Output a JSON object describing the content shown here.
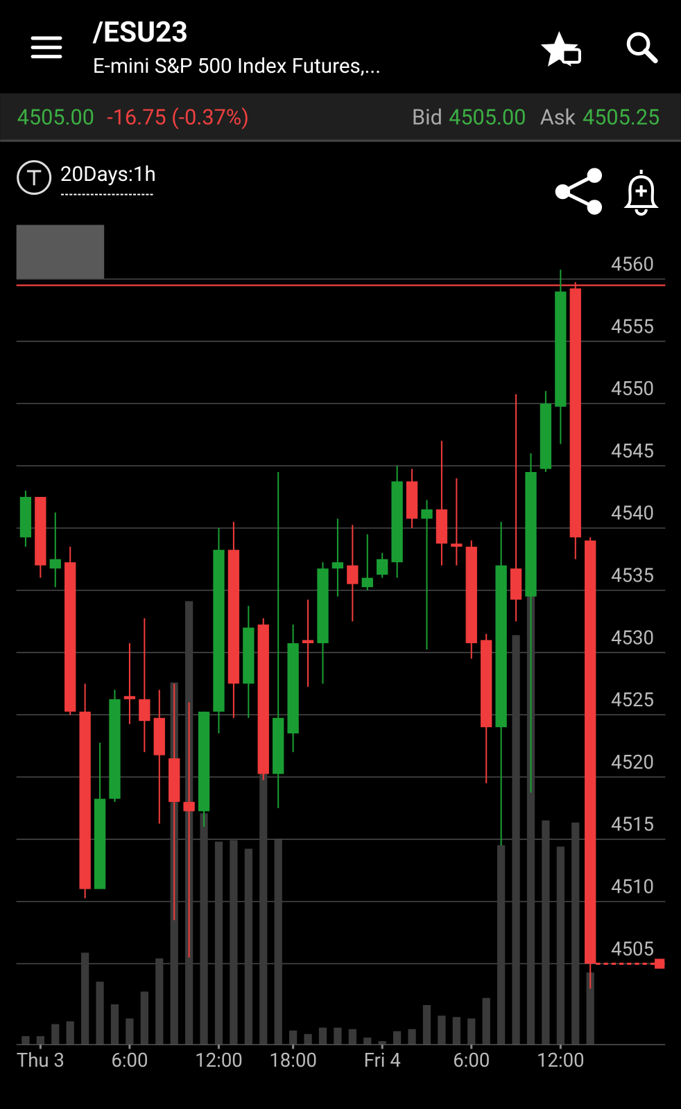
{
  "header": {
    "symbol": "/ESU23",
    "description": "E-mini S&P 500 Index Futures,..."
  },
  "quote": {
    "last": "4505.00",
    "change": "-16.75 (-0.37%)",
    "bid_label": "Bid",
    "bid": "4505.00",
    "ask_label": "Ask",
    "ask": "4505.25"
  },
  "chart_controls": {
    "timeframe": "20Days:1h"
  },
  "chart_data": {
    "type": "candlestick",
    "categories": [
      null,
      "Thu 3",
      null,
      null,
      null,
      null,
      null,
      "6:00",
      null,
      null,
      null,
      null,
      null,
      "12:00",
      null,
      null,
      null,
      null,
      "18:00",
      null,
      null,
      null,
      null,
      null,
      "Fri 4",
      null,
      null,
      null,
      null,
      null,
      "6:00",
      null,
      null,
      null,
      null,
      null,
      "12:00",
      null,
      null
    ],
    "open": [
      4539.25,
      4542.5,
      4536.75,
      4537.25,
      4525.25,
      4511,
      4518.25,
      4526.5,
      4526.25,
      4524.75,
      4521.5,
      4518,
      4517.25,
      4525.25,
      4538.25,
      4527.5,
      4532.25,
      4520.25,
      4523.5,
      4531,
      4530.75,
      4536.75,
      4537,
      4535.25,
      4536.25,
      4537.25,
      4543.75,
      4540.75,
      4541.5,
      4538.75,
      4538.5,
      4531,
      4524,
      4536.75,
      4534.5,
      4544.75,
      4549.75,
      4559.25,
      4539
    ],
    "high": [
      4543,
      4542.5,
      4541.25,
      4538.5,
      4527.5,
      4522.75,
      4527,
      4530.75,
      4532.75,
      4527,
      4527.5,
      4526,
      4525.25,
      4540,
      4540.5,
      4533.75,
      4532.75,
      4544.5,
      4532.25,
      4534.25,
      4537.25,
      4540.75,
      4540.25,
      4539.5,
      4538,
      4545,
      4544.75,
      4542.25,
      4547,
      4544,
      4539,
      4531.5,
      4540.5,
      4550.75,
      4546,
      4551,
      4560.75,
      4559.75,
      4539.25
    ],
    "low": [
      4538.5,
      4536,
      4535.25,
      4525,
      4510.25,
      4511,
      4518,
      4524.25,
      4522,
      4516.25,
      4508.5,
      4505.5,
      4516,
      4523.5,
      4524.75,
      4524.75,
      4519.75,
      4517.5,
      4522,
      4527.25,
      4527.5,
      4534.5,
      4532.5,
      4535,
      4536,
      4536,
      4540,
      4530.25,
      4537,
      4537,
      4529.5,
      4519.5,
      4514.5,
      4532.5,
      4518.75,
      4544.5,
      4546.75,
      4537.5,
      4503
    ],
    "close": [
      4542.5,
      4537,
      4537.5,
      4525.25,
      4511,
      4518.25,
      4526.25,
      4526.25,
      4524.5,
      4521.75,
      4518,
      4517.25,
      4525.25,
      4538.25,
      4527.5,
      4532,
      4520.25,
      4524.75,
      4530.75,
      4530.75,
      4536.75,
      4537.25,
      4535.5,
      4536,
      4537.5,
      4543.75,
      4540.75,
      4541.5,
      4538.75,
      4538.5,
      4530.75,
      4524,
      4537,
      4534.25,
      4544.5,
      4550,
      4559,
      4539.25,
      4505
    ],
    "volume": [
      12,
      12,
      29,
      33,
      130,
      89,
      57,
      37,
      75,
      122,
      512,
      627,
      327,
      287,
      289,
      277,
      397,
      290,
      20,
      15,
      24,
      24,
      22,
      10,
      5,
      19,
      22,
      56,
      41,
      39,
      37,
      66,
      282,
      579,
      635,
      317,
      280,
      314,
      102
    ],
    "vlim": [
      0,
      700
    ],
    "ylim": [
      4498.5,
      4564.5
    ],
    "yticks": [
      4505,
      4510,
      4515,
      4520,
      4525,
      4530,
      4535,
      4540,
      4545,
      4550,
      4555,
      4560
    ],
    "grid": true,
    "reference_line": 4559.5,
    "up_color": "#1a9e33",
    "down_color": "#f03c3c",
    "volume_color": "#3a3a3a",
    "reference_color": "#e23a3a"
  }
}
